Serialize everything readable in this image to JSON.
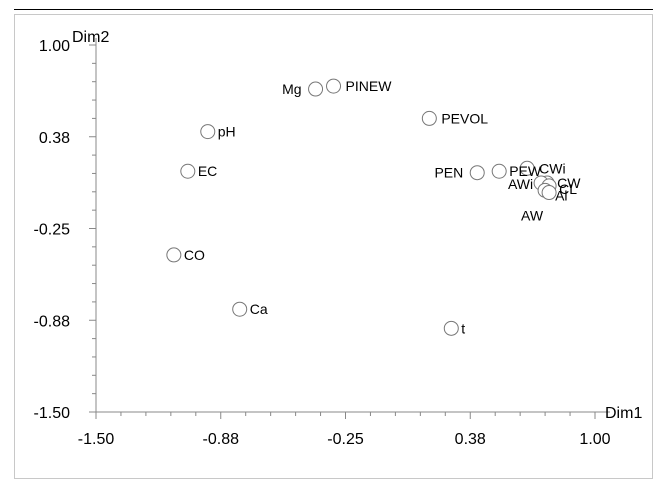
{
  "chart_data": {
    "type": "scatter",
    "xlabel": "Dim1",
    "ylabel": "Dim2",
    "xlim": [
      -1.5,
      1.0
    ],
    "ylim": [
      -1.5,
      1.0
    ],
    "x_ticks": [
      "-1.50",
      "-0.88",
      "-0.25",
      "0.38",
      "1.00"
    ],
    "y_ticks": [
      "1.00",
      "0.38",
      "-0.25",
      "-0.88",
      "-1.50"
    ],
    "grid": false,
    "points": [
      {
        "label": "Mg",
        "x": -0.4,
        "y": 0.7
      },
      {
        "label": "PINEW",
        "x": -0.31,
        "y": 0.72
      },
      {
        "label": "PEVOL",
        "x": 0.17,
        "y": 0.5
      },
      {
        "label": "pH",
        "x": -0.94,
        "y": 0.41
      },
      {
        "label": "EC",
        "x": -1.04,
        "y": 0.14
      },
      {
        "label": "CWi",
        "x": 0.66,
        "y": 0.16
      },
      {
        "label": "PEN",
        "x": 0.41,
        "y": 0.13
      },
      {
        "label": "PEW",
        "x": 0.52,
        "y": 0.14
      },
      {
        "label": "CW",
        "x": 0.76,
        "y": 0.06
      },
      {
        "label": "AWi",
        "x": 0.73,
        "y": 0.06
      },
      {
        "label": "CL",
        "x": 0.77,
        "y": 0.04
      },
      {
        "label": "Al",
        "x": 0.75,
        "y": 0.01
      },
      {
        "label": "AW",
        "x": 0.77,
        "y": -0.005
      },
      {
        "label": "CO",
        "x": -1.11,
        "y": -0.43
      },
      {
        "label": "Ca",
        "x": -0.78,
        "y": -0.8
      },
      {
        "label": "t",
        "x": 0.28,
        "y": -0.93
      }
    ]
  }
}
